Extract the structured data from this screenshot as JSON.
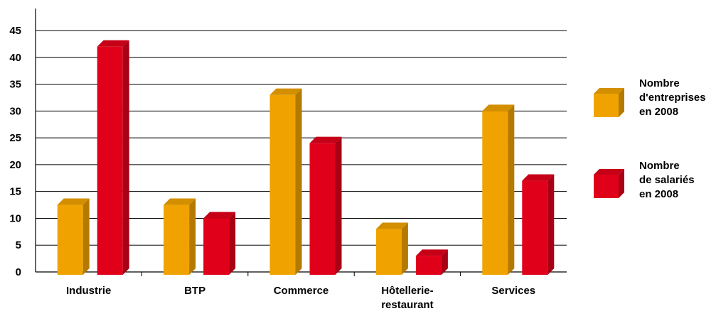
{
  "chart_data": {
    "type": "bar",
    "categories": [
      "Industrie",
      "BTP",
      "Commerce",
      "Hôtellerie-restaurant",
      "Services"
    ],
    "category_label_lines": [
      [
        "Industrie"
      ],
      [
        "BTP"
      ],
      [
        "Commerce"
      ],
      [
        "Hôtellerie-",
        "restaurant"
      ],
      [
        "Services"
      ]
    ],
    "series": [
      {
        "name": "Nombre d'entreprises en 2008",
        "name_lines": [
          "Nombre",
          "d'entreprises",
          "en 2008"
        ],
        "color": "#F0A300",
        "values": [
          12.5,
          12.5,
          33,
          8,
          30
        ]
      },
      {
        "name": "Nombre de salariés en 2008",
        "name_lines": [
          "Nombre",
          "de salariés",
          "en 2008"
        ],
        "color": "#E0001A",
        "values": [
          42,
          10,
          24,
          3,
          17
        ]
      }
    ],
    "yticks": [
      0,
      5,
      10,
      15,
      20,
      25,
      30,
      35,
      40,
      45
    ],
    "ylim": [
      0,
      45
    ],
    "grid": true,
    "legend_position": "right",
    "title": "",
    "xlabel": "",
    "ylabel": ""
  }
}
